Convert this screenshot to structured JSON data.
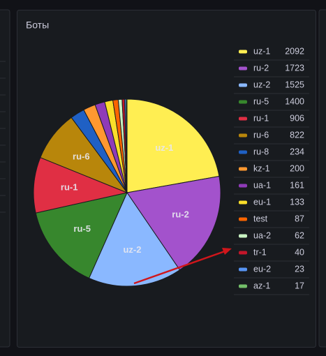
{
  "chart_data": {
    "type": "pie",
    "title": "Боты",
    "categories": [
      "uz-1",
      "ru-2",
      "uz-2",
      "ru-5",
      "ru-1",
      "ru-6",
      "ru-8",
      "kz-1",
      "ua-1",
      "eu-1",
      "test",
      "ua-2",
      "tr-1",
      "eu-2",
      "az-1"
    ],
    "values": [
      2092,
      1723,
      1525,
      1400,
      906,
      822,
      234,
      200,
      161,
      133,
      87,
      62,
      40,
      23,
      17
    ],
    "colors": [
      "#ffee52",
      "#a352cc",
      "#8ab8ff",
      "#37872d",
      "#e02f44",
      "#b8860b",
      "#1f60c4",
      "#ff9830",
      "#8f3bb8",
      "#fade2a",
      "#fa6400",
      "#c8f2c2",
      "#c4162a",
      "#5794f2",
      "#73bf69"
    ],
    "legend": "right"
  }
}
